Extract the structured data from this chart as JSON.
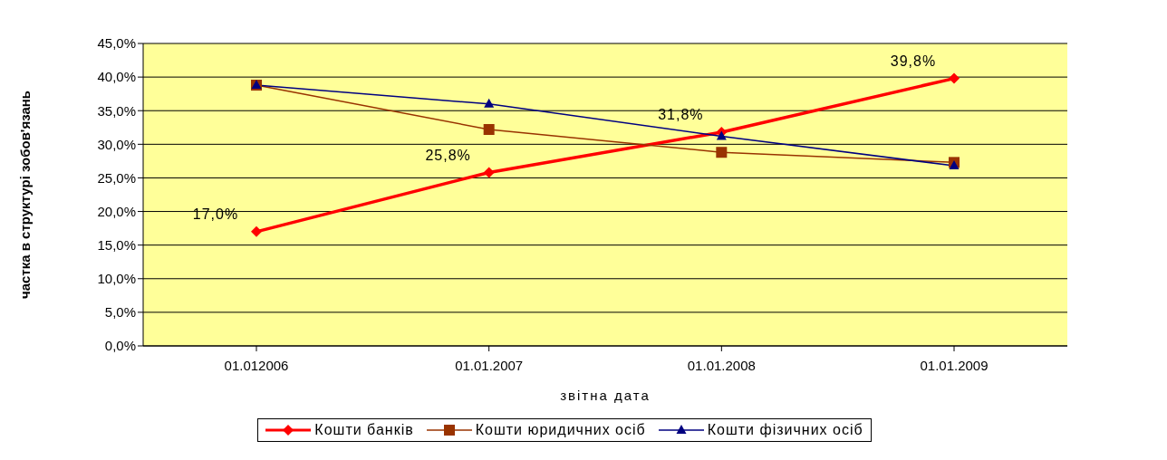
{
  "chart_data": {
    "type": "line",
    "xlabel": "звітна дата",
    "ylabel": "частка в структурі зобов'язань",
    "categories": [
      "01.012006",
      "01.01.2007",
      "01.01.2008",
      "01.01.2009"
    ],
    "series": [
      {
        "name": "Кошти банків",
        "color": "#ff0000",
        "marker": "diamond",
        "values": [
          17.0,
          25.8,
          31.8,
          39.8
        ],
        "value_labels": [
          "17,0%",
          "25,8%",
          "31,8%",
          "39,8%"
        ]
      },
      {
        "name": "Кошти юридичних осіб",
        "color": "#993300",
        "marker": "square",
        "values": [
          38.8,
          32.2,
          28.8,
          27.3
        ]
      },
      {
        "name": "Кошти фізичних осіб",
        "color": "#000080",
        "marker": "triangle",
        "values": [
          38.8,
          36.0,
          31.2,
          26.8
        ]
      }
    ],
    "ylim": [
      0,
      45
    ],
    "yticks": [
      {
        "value": 0,
        "label": "0,0%"
      },
      {
        "value": 5,
        "label": "5,0%"
      },
      {
        "value": 10,
        "label": "10,0%"
      },
      {
        "value": 15,
        "label": "15,0%"
      },
      {
        "value": 20,
        "label": "20,0%"
      },
      {
        "value": 25,
        "label": "25,0%"
      },
      {
        "value": 30,
        "label": "30,0%"
      },
      {
        "value": 35,
        "label": "35,0%"
      },
      {
        "value": 40,
        "label": "40,0%"
      },
      {
        "value": 45,
        "label": "45,0%"
      }
    ],
    "grid": "y",
    "legend": "bottom",
    "line_style": "solid"
  }
}
